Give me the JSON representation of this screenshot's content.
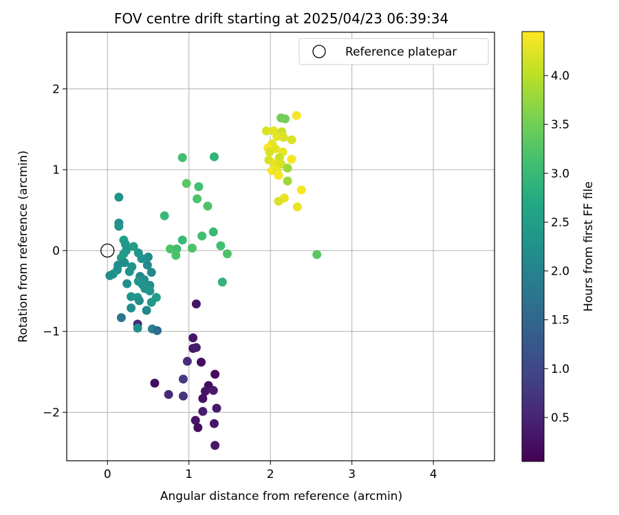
{
  "chart_data": {
    "type": "scatter",
    "title": "FOV centre drift starting at 2025/04/23 06:39:34",
    "xlabel": "Angular distance from reference (arcmin)",
    "ylabel": "Rotation from reference (arcmin)",
    "colorbar_label": "Hours from first FF file",
    "colormap": "viridis",
    "xlim": [
      -0.5,
      4.75
    ],
    "ylim": [
      -2.6,
      2.7
    ],
    "clim": [
      0.05,
      4.45
    ],
    "xticks": [
      0,
      1,
      2,
      3,
      4
    ],
    "yticks": [
      -2,
      -1,
      0,
      1,
      2
    ],
    "xtick_labels": [
      "0",
      "1",
      "2",
      "3",
      "4"
    ],
    "ytick_labels": [
      "−2",
      "−1",
      "0",
      "1",
      "2"
    ],
    "cbar_ticks": [
      0.5,
      1.0,
      1.5,
      2.0,
      2.5,
      3.0,
      3.5,
      4.0
    ],
    "cbar_tick_labels": [
      "0.5",
      "1.0",
      "1.5",
      "2.0",
      "2.5",
      "3.0",
      "3.5",
      "4.0"
    ],
    "grid": true,
    "legend": {
      "position": "top-right",
      "entries": [
        "Reference platepar"
      ]
    },
    "reference_point": {
      "x": 0,
      "y": 0
    },
    "points": [
      {
        "x": 1.09,
        "y": -0.66,
        "t": 0.3
      },
      {
        "x": 1.05,
        "y": -1.08,
        "t": 0.3
      },
      {
        "x": 1.05,
        "y": -1.21,
        "t": 0.3
      },
      {
        "x": 1.09,
        "y": -1.2,
        "t": 0.4
      },
      {
        "x": 0.98,
        "y": -1.37,
        "t": 0.6
      },
      {
        "x": 1.15,
        "y": -1.38,
        "t": 0.2
      },
      {
        "x": 1.32,
        "y": -1.53,
        "t": 0.15
      },
      {
        "x": 0.93,
        "y": -1.59,
        "t": 0.8
      },
      {
        "x": 1.24,
        "y": -1.67,
        "t": 0.2
      },
      {
        "x": 1.2,
        "y": -1.74,
        "t": 0.3
      },
      {
        "x": 1.3,
        "y": -1.73,
        "t": 0.35
      },
      {
        "x": 0.58,
        "y": -1.64,
        "t": 0.2
      },
      {
        "x": 0.75,
        "y": -1.78,
        "t": 0.55
      },
      {
        "x": 0.93,
        "y": -1.8,
        "t": 0.7
      },
      {
        "x": 1.17,
        "y": -1.83,
        "t": 0.25
      },
      {
        "x": 1.34,
        "y": -1.95,
        "t": 0.35
      },
      {
        "x": 1.17,
        "y": -1.99,
        "t": 0.4
      },
      {
        "x": 1.08,
        "y": -2.1,
        "t": 0.3
      },
      {
        "x": 1.11,
        "y": -2.19,
        "t": 0.2
      },
      {
        "x": 1.31,
        "y": -2.14,
        "t": 0.3
      },
      {
        "x": 1.32,
        "y": -2.41,
        "t": 0.35
      },
      {
        "x": 0.14,
        "y": 0.66,
        "t": 2.3
      },
      {
        "x": 0.14,
        "y": 0.34,
        "t": 2.2
      },
      {
        "x": 0.14,
        "y": 0.3,
        "t": 2.3
      },
      {
        "x": 0.2,
        "y": 0.13,
        "t": 2.5
      },
      {
        "x": 0.22,
        "y": 0.08,
        "t": 2.4
      },
      {
        "x": 0.32,
        "y": 0.05,
        "t": 2.5
      },
      {
        "x": 0.23,
        "y": 0.0,
        "t": 2.3
      },
      {
        "x": 0.2,
        "y": -0.04,
        "t": 2.4
      },
      {
        "x": 0.38,
        "y": -0.03,
        "t": 2.3
      },
      {
        "x": 0.5,
        "y": -0.08,
        "t": 2.2
      },
      {
        "x": 0.17,
        "y": -0.09,
        "t": 2.5
      },
      {
        "x": 0.42,
        "y": -0.1,
        "t": 2.3
      },
      {
        "x": 0.21,
        "y": -0.15,
        "t": 2.2
      },
      {
        "x": 0.13,
        "y": -0.18,
        "t": 2.2
      },
      {
        "x": 0.3,
        "y": -0.2,
        "t": 2.3
      },
      {
        "x": 0.49,
        "y": -0.18,
        "t": 2.1
      },
      {
        "x": 0.12,
        "y": -0.24,
        "t": 2.2
      },
      {
        "x": 0.27,
        "y": -0.26,
        "t": 2.3
      },
      {
        "x": 0.07,
        "y": -0.29,
        "t": 2.3
      },
      {
        "x": 0.03,
        "y": -0.31,
        "t": 2.2
      },
      {
        "x": 0.54,
        "y": -0.27,
        "t": 2.1
      },
      {
        "x": 0.4,
        "y": -0.32,
        "t": 2.1
      },
      {
        "x": 0.38,
        "y": -0.38,
        "t": 2.4
      },
      {
        "x": 0.45,
        "y": -0.36,
        "t": 2.2
      },
      {
        "x": 0.24,
        "y": -0.41,
        "t": 2.2
      },
      {
        "x": 0.43,
        "y": -0.42,
        "t": 2.3
      },
      {
        "x": 0.52,
        "y": -0.43,
        "t": 2.2
      },
      {
        "x": 0.46,
        "y": -0.47,
        "t": 2.3
      },
      {
        "x": 0.52,
        "y": -0.5,
        "t": 2.3
      },
      {
        "x": 0.29,
        "y": -0.57,
        "t": 2.3
      },
      {
        "x": 0.37,
        "y": -0.58,
        "t": 2.4
      },
      {
        "x": 0.6,
        "y": -0.58,
        "t": 2.5
      },
      {
        "x": 0.39,
        "y": -0.62,
        "t": 2.2
      },
      {
        "x": 0.54,
        "y": -0.64,
        "t": 2.4
      },
      {
        "x": 0.29,
        "y": -0.71,
        "t": 2.2
      },
      {
        "x": 0.48,
        "y": -0.74,
        "t": 2.1
      },
      {
        "x": 0.17,
        "y": -0.83,
        "t": 1.8
      },
      {
        "x": 0.37,
        "y": -0.91,
        "t": 0.6
      },
      {
        "x": 0.37,
        "y": -0.96,
        "t": 2.2
      },
      {
        "x": 0.55,
        "y": -0.97,
        "t": 2.0
      },
      {
        "x": 0.61,
        "y": -0.99,
        "t": 1.6
      },
      {
        "x": 0.92,
        "y": 1.15,
        "t": 3.1
      },
      {
        "x": 1.31,
        "y": 1.16,
        "t": 2.9
      },
      {
        "x": 0.97,
        "y": 0.83,
        "t": 3.3
      },
      {
        "x": 1.12,
        "y": 0.79,
        "t": 3.1
      },
      {
        "x": 1.1,
        "y": 0.64,
        "t": 3.2
      },
      {
        "x": 1.23,
        "y": 0.55,
        "t": 3.2
      },
      {
        "x": 0.7,
        "y": 0.43,
        "t": 3.0
      },
      {
        "x": 1.3,
        "y": 0.23,
        "t": 3.0
      },
      {
        "x": 1.16,
        "y": 0.18,
        "t": 3.1
      },
      {
        "x": 0.92,
        "y": 0.13,
        "t": 3.0
      },
      {
        "x": 1.39,
        "y": 0.06,
        "t": 3.1
      },
      {
        "x": 0.77,
        "y": 0.02,
        "t": 3.2
      },
      {
        "x": 0.85,
        "y": 0.02,
        "t": 3.1
      },
      {
        "x": 1.04,
        "y": 0.03,
        "t": 3.2
      },
      {
        "x": 0.84,
        "y": -0.06,
        "t": 3.2
      },
      {
        "x": 1.47,
        "y": -0.04,
        "t": 3.2
      },
      {
        "x": 1.41,
        "y": -0.39,
        "t": 2.9
      },
      {
        "x": 2.57,
        "y": -0.05,
        "t": 3.3
      },
      {
        "x": 2.32,
        "y": 1.67,
        "t": 4.4
      },
      {
        "x": 2.13,
        "y": 1.64,
        "t": 3.5
      },
      {
        "x": 2.18,
        "y": 1.63,
        "t": 3.5
      },
      {
        "x": 1.95,
        "y": 1.48,
        "t": 4.2
      },
      {
        "x": 2.04,
        "y": 1.48,
        "t": 4.3
      },
      {
        "x": 2.14,
        "y": 1.47,
        "t": 4.1
      },
      {
        "x": 2.08,
        "y": 1.41,
        "t": 4.3
      },
      {
        "x": 2.16,
        "y": 1.4,
        "t": 4.2
      },
      {
        "x": 2.26,
        "y": 1.37,
        "t": 4.2
      },
      {
        "x": 2.02,
        "y": 1.32,
        "t": 4.3
      },
      {
        "x": 1.97,
        "y": 1.27,
        "t": 4.4
      },
      {
        "x": 2.06,
        "y": 1.26,
        "t": 4.3
      },
      {
        "x": 1.99,
        "y": 1.22,
        "t": 4.2
      },
      {
        "x": 2.15,
        "y": 1.22,
        "t": 4.3
      },
      {
        "x": 2.11,
        "y": 1.15,
        "t": 4.1
      },
      {
        "x": 2.26,
        "y": 1.13,
        "t": 4.4
      },
      {
        "x": 1.98,
        "y": 1.12,
        "t": 4.2
      },
      {
        "x": 2.05,
        "y": 1.08,
        "t": 4.3
      },
      {
        "x": 2.13,
        "y": 1.07,
        "t": 4.2
      },
      {
        "x": 2.21,
        "y": 1.02,
        "t": 3.8
      },
      {
        "x": 2.02,
        "y": 0.99,
        "t": 4.4
      },
      {
        "x": 2.08,
        "y": 0.98,
        "t": 4.3
      },
      {
        "x": 2.1,
        "y": 0.93,
        "t": 4.4
      },
      {
        "x": 2.21,
        "y": 0.86,
        "t": 3.8
      },
      {
        "x": 2.38,
        "y": 0.75,
        "t": 4.4
      },
      {
        "x": 2.17,
        "y": 0.65,
        "t": 4.3
      },
      {
        "x": 2.1,
        "y": 0.61,
        "t": 4.2
      },
      {
        "x": 2.33,
        "y": 0.54,
        "t": 4.3
      }
    ]
  }
}
